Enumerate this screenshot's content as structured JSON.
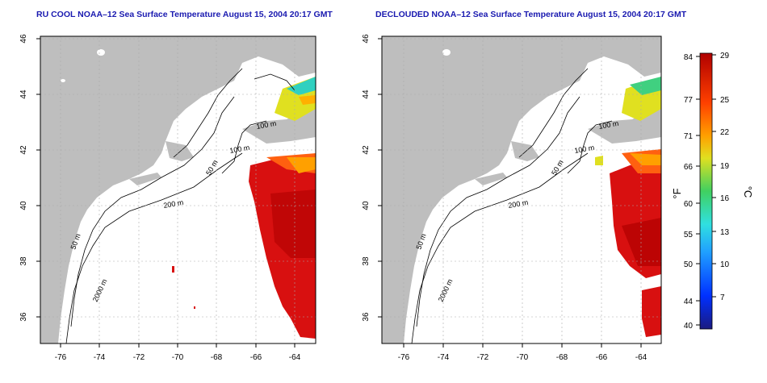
{
  "titles": {
    "left": "RU COOL NOAA–12 Sea Surface Temperature August 15, 2004 20:17 GMT",
    "right": "DECLOUDED NOAA–12 Sea Surface Temperature August 15, 2004 20:17 GMT"
  },
  "axes": {
    "lon_ticks": [
      "-76",
      "-74",
      "-72",
      "-70",
      "-68",
      "-66",
      "-64"
    ],
    "lat_ticks": [
      "36",
      "38",
      "40",
      "42",
      "44",
      "46"
    ]
  },
  "contours": {
    "labels": [
      "100 m",
      "100 m",
      "50 m",
      "200 m",
      "50 m",
      "2000 m"
    ]
  },
  "colorbar": {
    "f_ticks": [
      "84",
      "77",
      "71",
      "66",
      "60",
      "55",
      "50",
      "44",
      "40"
    ],
    "c_ticks": [
      "29",
      "25",
      "22",
      "19",
      "16",
      "13",
      "10",
      "7"
    ],
    "f_label": "°F",
    "c_label": "°C"
  },
  "colors": {
    "land": "#bebebe",
    "ocean": "#ffffff",
    "warm": "#d01010",
    "title": "#1a1ab0"
  }
}
